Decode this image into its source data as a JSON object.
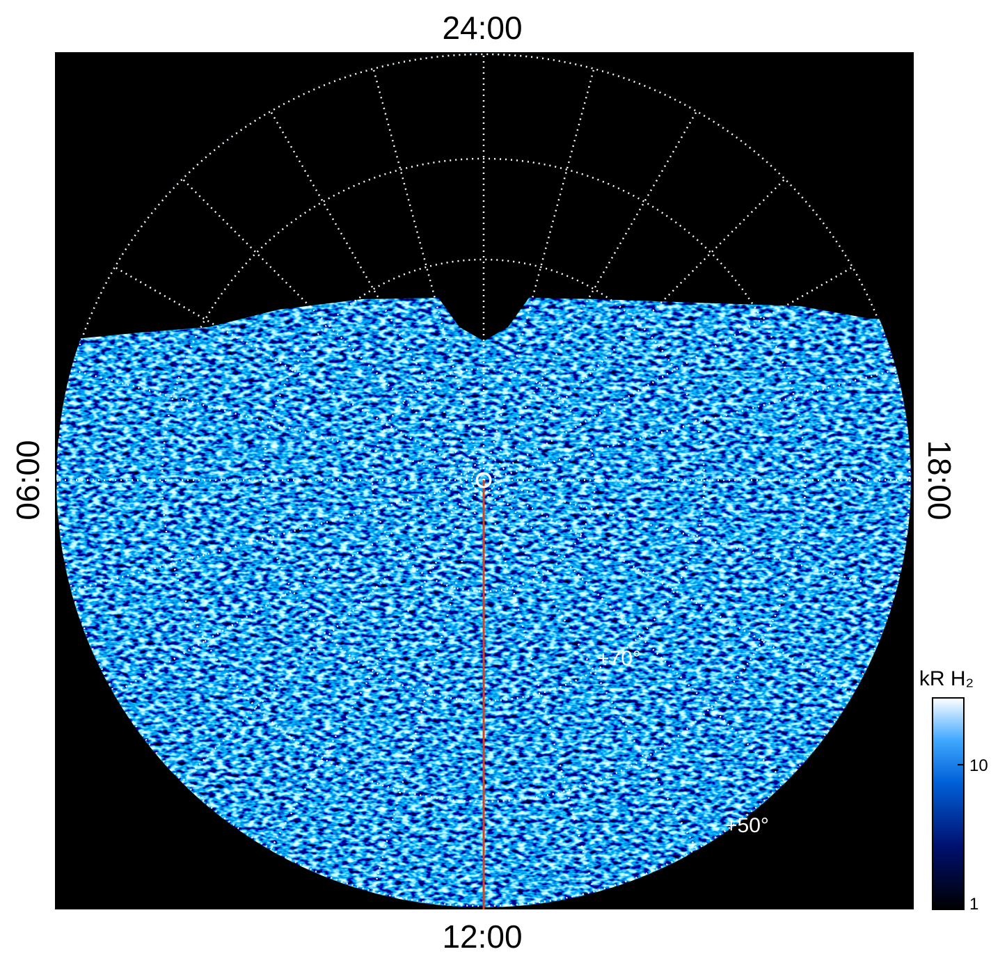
{
  "local_time_labels": {
    "top": "24:00",
    "bottom": "12:00",
    "left": "06:00",
    "right": "18:00"
  },
  "latitude_labels": [
    "+70°",
    "+50°"
  ],
  "colorbar": {
    "title": "kR H₂",
    "clim": [
      1,
      29
    ],
    "log_scale": true,
    "ticks": [
      1,
      10
    ]
  }
}
